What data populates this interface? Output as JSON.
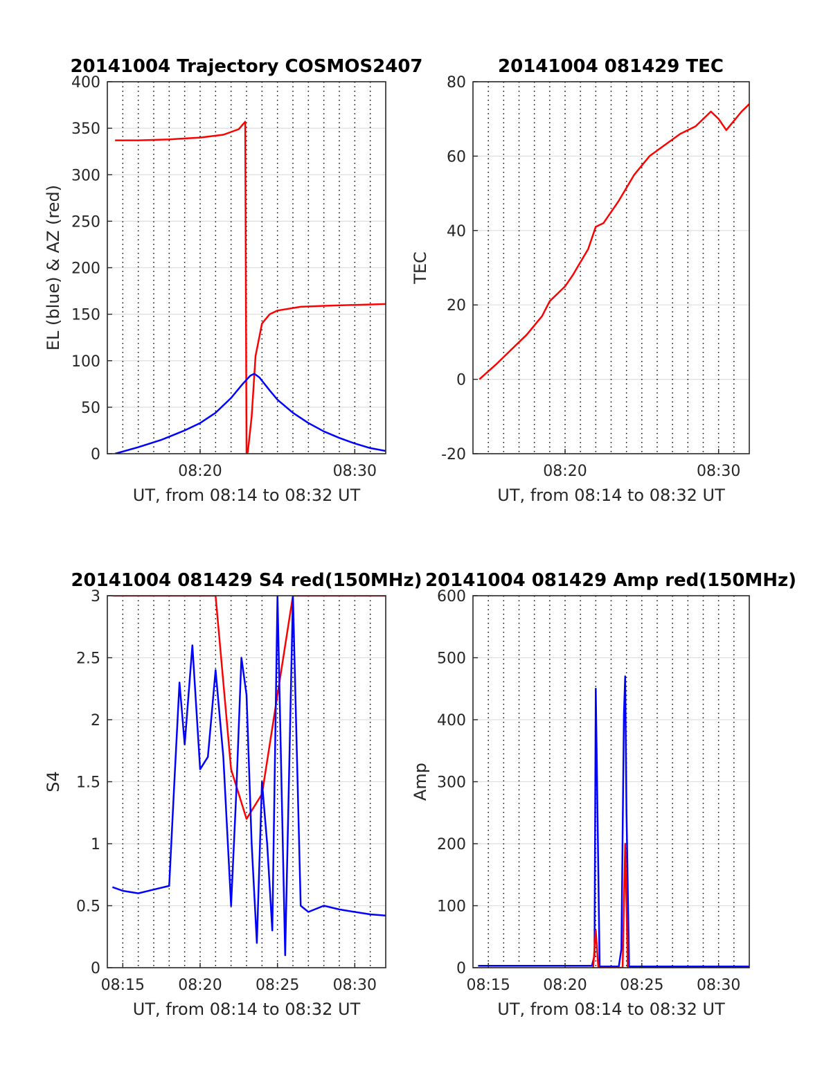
{
  "figure": {
    "background": "#ffffff",
    "line_colors": {
      "red": "#ff0000",
      "blue": "#0000ff"
    }
  },
  "chart_data": [
    {
      "type": "line",
      "title": "20141004 Trajectory COSMOS2407",
      "xlabel": "UT, from 08:14 to 08:32 UT",
      "ylabel": "EL (blue) & AZ (red)",
      "xlim": [
        "08:14:00",
        "08:32:00"
      ],
      "ylim": [
        0,
        400
      ],
      "x_ticks": [
        "08:20",
        "08:30"
      ],
      "y_ticks": [
        "0",
        "50",
        "100",
        "150",
        "200",
        "250",
        "300",
        "350",
        "400"
      ],
      "grid": true,
      "series": [
        {
          "color": "#ff0000",
          "x": [
            "08:14:30",
            "08:16:00",
            "08:18:00",
            "08:20:00",
            "08:21:30",
            "08:22:30",
            "08:22:55",
            "08:23:00",
            "08:23:05",
            "08:23:20",
            "08:23:35",
            "08:24:00",
            "08:24:30",
            "08:25:00",
            "08:26:30",
            "08:28:00",
            "08:30:00",
            "08:32:00"
          ],
          "values": [
            337,
            337,
            338,
            340,
            343,
            349,
            357,
            0,
            2,
            40,
            105,
            140,
            150,
            154,
            158,
            159,
            160,
            161
          ]
        },
        {
          "color": "#0000ff",
          "x": [
            "08:14:30",
            "08:16:00",
            "08:17:30",
            "08:19:00",
            "08:20:00",
            "08:21:00",
            "08:22:00",
            "08:22:45",
            "08:23:15",
            "08:23:30",
            "08:23:50",
            "08:24:30",
            "08:25:00",
            "08:26:00",
            "08:27:00",
            "08:28:00",
            "08:29:00",
            "08:30:00",
            "08:31:00",
            "08:32:00"
          ],
          "values": [
            0,
            7,
            15,
            25,
            33,
            44,
            60,
            75,
            84,
            86,
            82,
            68,
            58,
            44,
            33,
            24,
            17,
            11,
            6,
            3
          ]
        }
      ]
    },
    {
      "type": "line",
      "title": "20141004 081429 TEC",
      "xlabel": "UT, from 08:14 to 08:32 UT",
      "ylabel": "TEC",
      "xlim": [
        "08:14:00",
        "08:32:00"
      ],
      "ylim": [
        -20,
        80
      ],
      "x_ticks": [
        "08:20",
        "08:30"
      ],
      "y_ticks": [
        "-20",
        "0",
        "20",
        "40",
        "60",
        "80"
      ],
      "grid": true,
      "series": [
        {
          "color": "#ff0000",
          "x": [
            "08:14:25",
            "08:15:30",
            "08:16:30",
            "08:17:30",
            "08:18:30",
            "08:19:00",
            "08:20:00",
            "08:20:30",
            "08:21:30",
            "08:22:00",
            "08:22:30",
            "08:23:30",
            "08:24:30",
            "08:25:30",
            "08:26:30",
            "08:27:30",
            "08:28:30",
            "08:29:30",
            "08:30:00",
            "08:30:30",
            "08:31:30",
            "08:32:00"
          ],
          "values": [
            0,
            4,
            8,
            12,
            17,
            21,
            25,
            28,
            35,
            41,
            42,
            48,
            55,
            60,
            63,
            66,
            68,
            72,
            70,
            67,
            72,
            74
          ]
        }
      ]
    },
    {
      "type": "line",
      "title": "20141004 081429 S4 red(150MHz)",
      "xlabel": "UT, from 08:14 to 08:32 UT",
      "ylabel": "S4",
      "xlim": [
        "08:14:00",
        "08:32:00"
      ],
      "ylim": [
        0,
        3
      ],
      "x_ticks": [
        "08:15",
        "08:20",
        "08:25",
        "08:30"
      ],
      "y_ticks": [
        "0",
        "0.5",
        "1",
        "1.5",
        "2",
        "2.5",
        "3"
      ],
      "grid": true,
      "series": [
        {
          "color": "#ff0000",
          "note_on_display": "",
          "x": [
            "08:14:20",
            "08:18:30",
            "08:21:00",
            "08:22:00",
            "08:23:00",
            "08:24:00",
            "08:26:00",
            "08:28:00",
            "08:30:00",
            "08:32:00"
          ],
          "values": [
            3,
            3,
            3,
            1.6,
            1.2,
            1.4,
            3,
            3,
            3,
            3
          ]
        },
        {
          "color": "#0000ff",
          "x": [
            "08:14:20",
            "08:15:00",
            "08:16:00",
            "08:17:00",
            "08:18:00",
            "08:18:20",
            "08:18:40",
            "08:19:00",
            "08:19:30",
            "08:20:00",
            "08:20:30",
            "08:21:00",
            "08:21:30",
            "08:22:00",
            "08:22:20",
            "08:22:40",
            "08:23:00",
            "08:23:20",
            "08:23:40",
            "08:24:00",
            "08:24:20",
            "08:24:40",
            "08:25:00",
            "08:25:30",
            "08:26:00",
            "08:26:30",
            "08:27:00",
            "08:28:00",
            "08:29:00",
            "08:30:00",
            "08:31:00",
            "08:32:00"
          ],
          "values": [
            0.65,
            0.62,
            0.6,
            0.63,
            0.66,
            1.5,
            2.3,
            1.8,
            2.6,
            1.6,
            1.7,
            2.4,
            1.7,
            0.5,
            1.4,
            2.5,
            2.2,
            1.0,
            0.2,
            1.5,
            1.0,
            0.3,
            3.0,
            0.1,
            3.0,
            0.5,
            0.45,
            0.5,
            0.47,
            0.45,
            0.43,
            0.42
          ]
        }
      ]
    },
    {
      "type": "line",
      "title": "20141004 081429 Amp red(150MHz)",
      "xlabel": "UT, from 08:14 to 08:32 UT",
      "ylabel": "Amp",
      "xlim": [
        "08:14:00",
        "08:32:00"
      ],
      "ylim": [
        0,
        600
      ],
      "x_ticks": [
        "08:15",
        "08:20",
        "08:25",
        "08:30"
      ],
      "y_ticks": [
        "0",
        "100",
        "200",
        "300",
        "400",
        "500",
        "600"
      ],
      "grid": true,
      "series": [
        {
          "color": "#0000ff",
          "x": [
            "08:14:20",
            "08:17:30",
            "08:21:45",
            "08:21:55",
            "08:22:00",
            "08:22:05",
            "08:22:15",
            "08:23:30",
            "08:23:40",
            "08:23:50",
            "08:23:55",
            "08:24:00",
            "08:24:10",
            "08:28:00",
            "08:32:00"
          ],
          "values": [
            3,
            3,
            3,
            20,
            450,
            300,
            2,
            2,
            30,
            410,
            470,
            250,
            2,
            2,
            2
          ]
        },
        {
          "color": "#ff0000",
          "x": [
            "08:21:50",
            "08:22:00",
            "08:22:10",
            "08:23:45",
            "08:23:55",
            "08:24:05"
          ],
          "values": [
            0,
            60,
            0,
            0,
            200,
            0
          ]
        }
      ]
    }
  ]
}
